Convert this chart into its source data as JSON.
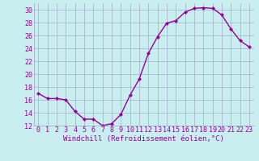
{
  "x": [
    0,
    1,
    2,
    3,
    4,
    5,
    6,
    7,
    8,
    9,
    10,
    11,
    12,
    13,
    14,
    15,
    16,
    17,
    18,
    19,
    20,
    21,
    22,
    23
  ],
  "y": [
    17,
    16.2,
    16.2,
    16,
    14.2,
    13,
    13,
    12,
    12.3,
    13.7,
    16.7,
    19.2,
    23.2,
    25.8,
    27.9,
    28.3,
    29.6,
    30.2,
    30.3,
    30.2,
    29.2,
    27,
    25.2,
    24.2
  ],
  "line_color": "#990099",
  "marker": "D",
  "marker_size": 2.0,
  "bg_color": "#c8eef0",
  "grid_color": "#aaaacc",
  "xlabel": "Windchill (Refroidissement éolien,°C)",
  "xlabel_color": "#990099",
  "xlabel_fontsize": 6.5,
  "tick_color": "#990099",
  "tick_fontsize": 6.0,
  "ylim": [
    12,
    31
  ],
  "xlim": [
    -0.5,
    23.5
  ],
  "yticks": [
    12,
    14,
    16,
    18,
    20,
    22,
    24,
    26,
    28,
    30
  ],
  "xticks": [
    0,
    1,
    2,
    3,
    4,
    5,
    6,
    7,
    8,
    9,
    10,
    11,
    12,
    13,
    14,
    15,
    16,
    17,
    18,
    19,
    20,
    21,
    22,
    23
  ]
}
